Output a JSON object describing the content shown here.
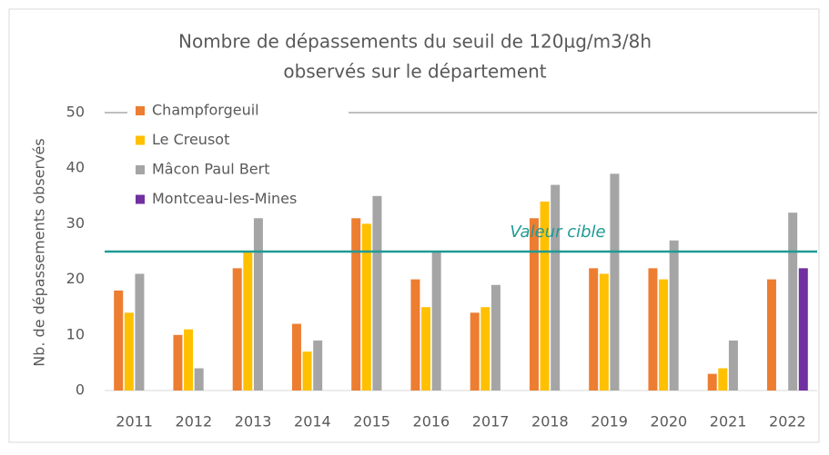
{
  "chart_data": {
    "type": "bar",
    "title": [
      "Nombre de dépassements du seuil de 120µg/m3/8h",
      "observés sur le département"
    ],
    "y_label": "Nb. de dépassements observés",
    "categories": [
      "2011",
      "2012",
      "2013",
      "2014",
      "2015",
      "2016",
      "2017",
      "2018",
      "2019",
      "2020",
      "2021",
      "2022"
    ],
    "series": [
      {
        "name": "Champforgeuil",
        "color": "#ed7d31",
        "values": [
          18,
          10,
          22,
          12,
          31,
          20,
          14,
          31,
          22,
          22,
          3,
          20
        ]
      },
      {
        "name": "Le Creusot",
        "color": "#ffc000",
        "values": [
          14,
          11,
          25,
          7,
          30,
          15,
          15,
          34,
          21,
          20,
          4,
          null
        ]
      },
      {
        "name": "Mâcon Paul Bert",
        "color": "#a5a5a5",
        "values": [
          21,
          4,
          31,
          9,
          35,
          25,
          19,
          37,
          39,
          27,
          9,
          32
        ]
      },
      {
        "name": "Montceau-les-Mines",
        "color": "#7030a0",
        "values": [
          null,
          null,
          null,
          null,
          null,
          null,
          null,
          null,
          null,
          null,
          null,
          22
        ]
      }
    ],
    "target": {
      "value": 25,
      "label": "Valeur cible",
      "color": "#1f9a96"
    },
    "ylim": [
      0,
      50
    ],
    "yticks": [
      0,
      10,
      20,
      30,
      40,
      50
    ],
    "legend": "top-left"
  }
}
